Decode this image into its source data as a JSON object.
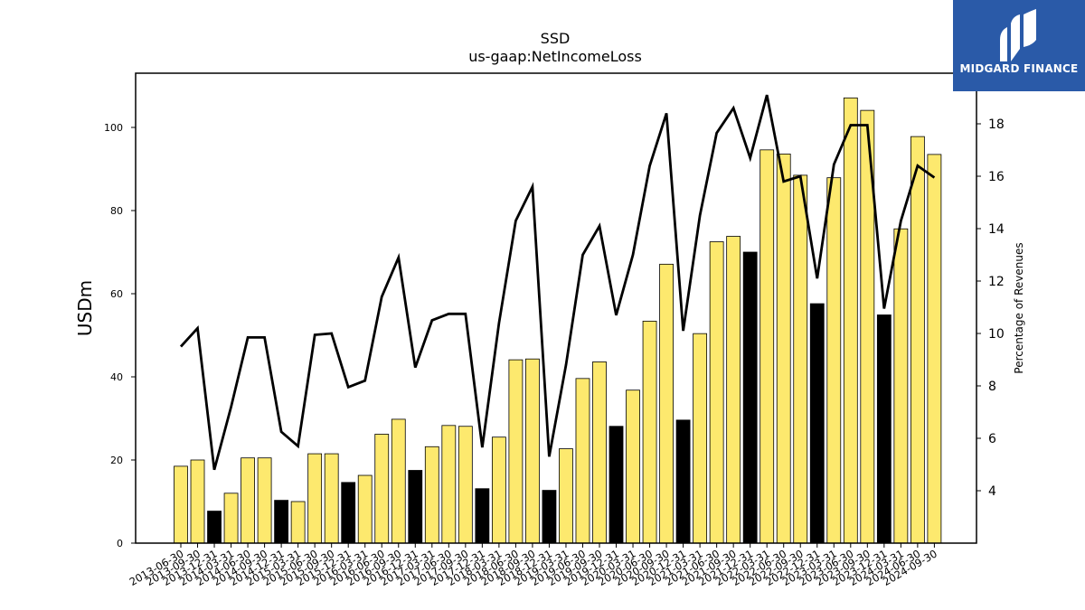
{
  "chart_data": {
    "type": "bar",
    "title": "SSD",
    "subtitle": "us-gaap:NetIncomeLoss",
    "ylabel": "USDm",
    "y2label": "Percentage of Revenues",
    "ylim": [
      0,
      112
    ],
    "y2lim": [
      2,
      20
    ],
    "yticks": [
      0,
      20,
      40,
      60,
      80,
      100
    ],
    "y2ticks": [
      4,
      6,
      8,
      10,
      12,
      14,
      16,
      18
    ],
    "grid": false,
    "categories": [
      "2013-06-30",
      "2013-09-30",
      "2013-12-31",
      "2014-03-31",
      "2014-06-30",
      "2014-09-30",
      "2014-12-31",
      "2015-03-31",
      "2015-06-30",
      "2015-09-30",
      "2015-12-31",
      "2016-03-31",
      "2016-06-30",
      "2016-09-30",
      "2016-12-31",
      "2017-03-31",
      "2017-06-30",
      "2017-09-30",
      "2017-12-31",
      "2018-03-31",
      "2018-06-30",
      "2018-09-30",
      "2018-12-31",
      "2019-03-31",
      "2019-06-30",
      "2019-09-30",
      "2019-12-31",
      "2020-03-31",
      "2020-06-30",
      "2020-09-30",
      "2020-12-31",
      "2021-03-31",
      "2021-06-30",
      "2021-09-30",
      "2021-12-31",
      "2022-03-31",
      "2022-06-30",
      "2022-09-30",
      "2022-12-31",
      "2023-03-31",
      "2023-06-30",
      "2023-09-30",
      "2023-12-31",
      "2024-03-31",
      "2024-06-30",
      "2024-09-30"
    ],
    "series": [
      {
        "type": "bar",
        "values": [
          18.5,
          20,
          7.7,
          12,
          20.5,
          20.5,
          10.3,
          10,
          21.5,
          21.5,
          14.6,
          16.3,
          26.2,
          29.8,
          17.5,
          23.2,
          28.3,
          28.1,
          13.1,
          25.5,
          44.1,
          44.3,
          12.7,
          22.7,
          39.6,
          43.6,
          28.1,
          36.8,
          53.4,
          67.1,
          29.6,
          50.4,
          72.5,
          73.8,
          70,
          94.6,
          93.6,
          88.5,
          57.6,
          87.9,
          107.1,
          104.1,
          54.9,
          75.6,
          97.8,
          93.5
        ],
        "colors": [
          "#fde96e",
          "#fde96e",
          "#000000",
          "#fde96e",
          "#fde96e",
          "#fde96e",
          "#000000",
          "#fde96e",
          "#fde96e",
          "#fde96e",
          "#000000",
          "#fde96e",
          "#fde96e",
          "#fde96e",
          "#000000",
          "#fde96e",
          "#fde96e",
          "#fde96e",
          "#000000",
          "#fde96e",
          "#fde96e",
          "#fde96e",
          "#000000",
          "#fde96e",
          "#fde96e",
          "#fde96e",
          "#000000",
          "#fde96e",
          "#fde96e",
          "#fde96e",
          "#000000",
          "#fde96e",
          "#fde96e",
          "#fde96e",
          "#000000",
          "#fde96e",
          "#fde96e",
          "#fde96e",
          "#000000",
          "#fde96e",
          "#fde96e",
          "#fde96e",
          "#000000",
          "#fde96e",
          "#fde96e",
          "#fde96e"
        ]
      },
      {
        "type": "line",
        "axis": "right",
        "color": "#000000",
        "values": [
          9.5,
          10.2,
          4.8,
          7.2,
          9.85,
          9.85,
          6.25,
          5.7,
          9.95,
          10,
          7.95,
          8.2,
          11.4,
          12.9,
          8.7,
          10.5,
          10.75,
          10.75,
          5.65,
          10.4,
          14.3,
          15.6,
          5.3,
          8.8,
          13,
          14.1,
          10.7,
          13,
          16.4,
          18.4,
          10.1,
          14.5,
          17.65,
          18.6,
          16.7,
          19.1,
          15.8,
          16,
          12.1,
          16.45,
          17.95,
          17.95,
          10.95,
          14.3,
          16.4,
          15.95
        ]
      }
    ]
  },
  "logo": {
    "text": "MIDGARD FINANCE",
    "color": "#2a5aa8"
  }
}
